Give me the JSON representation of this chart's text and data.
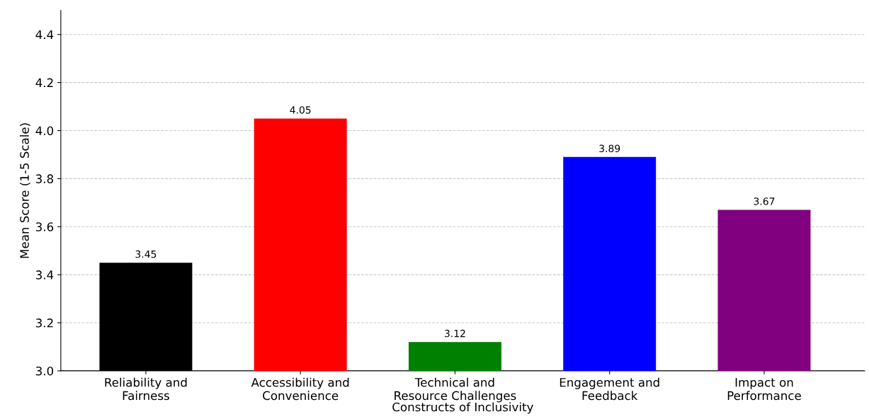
{
  "chart_data": {
    "type": "bar",
    "xlabel": "Constructs of Inclusivity",
    "ylabel": "Mean Score (1-5 Scale)",
    "categories": [
      "Reliability and\nFairness",
      "Accessibility and\nConvenience",
      "Technical and\nResource Challenges",
      "Engagement and\nFeedback",
      "Impact on\nPerformance"
    ],
    "values": [
      3.45,
      4.05,
      3.12,
      3.89,
      3.67
    ],
    "colors": [
      "#000000",
      "#ff0000",
      "#008000",
      "#0000ff",
      "#800080"
    ],
    "ylim": [
      3.0,
      4.5
    ],
    "yticks": [
      {
        "value": 3,
        "label": "3.0"
      },
      3.2,
      3.4,
      3.6,
      3.8,
      {
        "value": 4,
        "label": "4.0"
      },
      4.2,
      4.4
    ],
    "grid": "y",
    "data_labels": true
  }
}
